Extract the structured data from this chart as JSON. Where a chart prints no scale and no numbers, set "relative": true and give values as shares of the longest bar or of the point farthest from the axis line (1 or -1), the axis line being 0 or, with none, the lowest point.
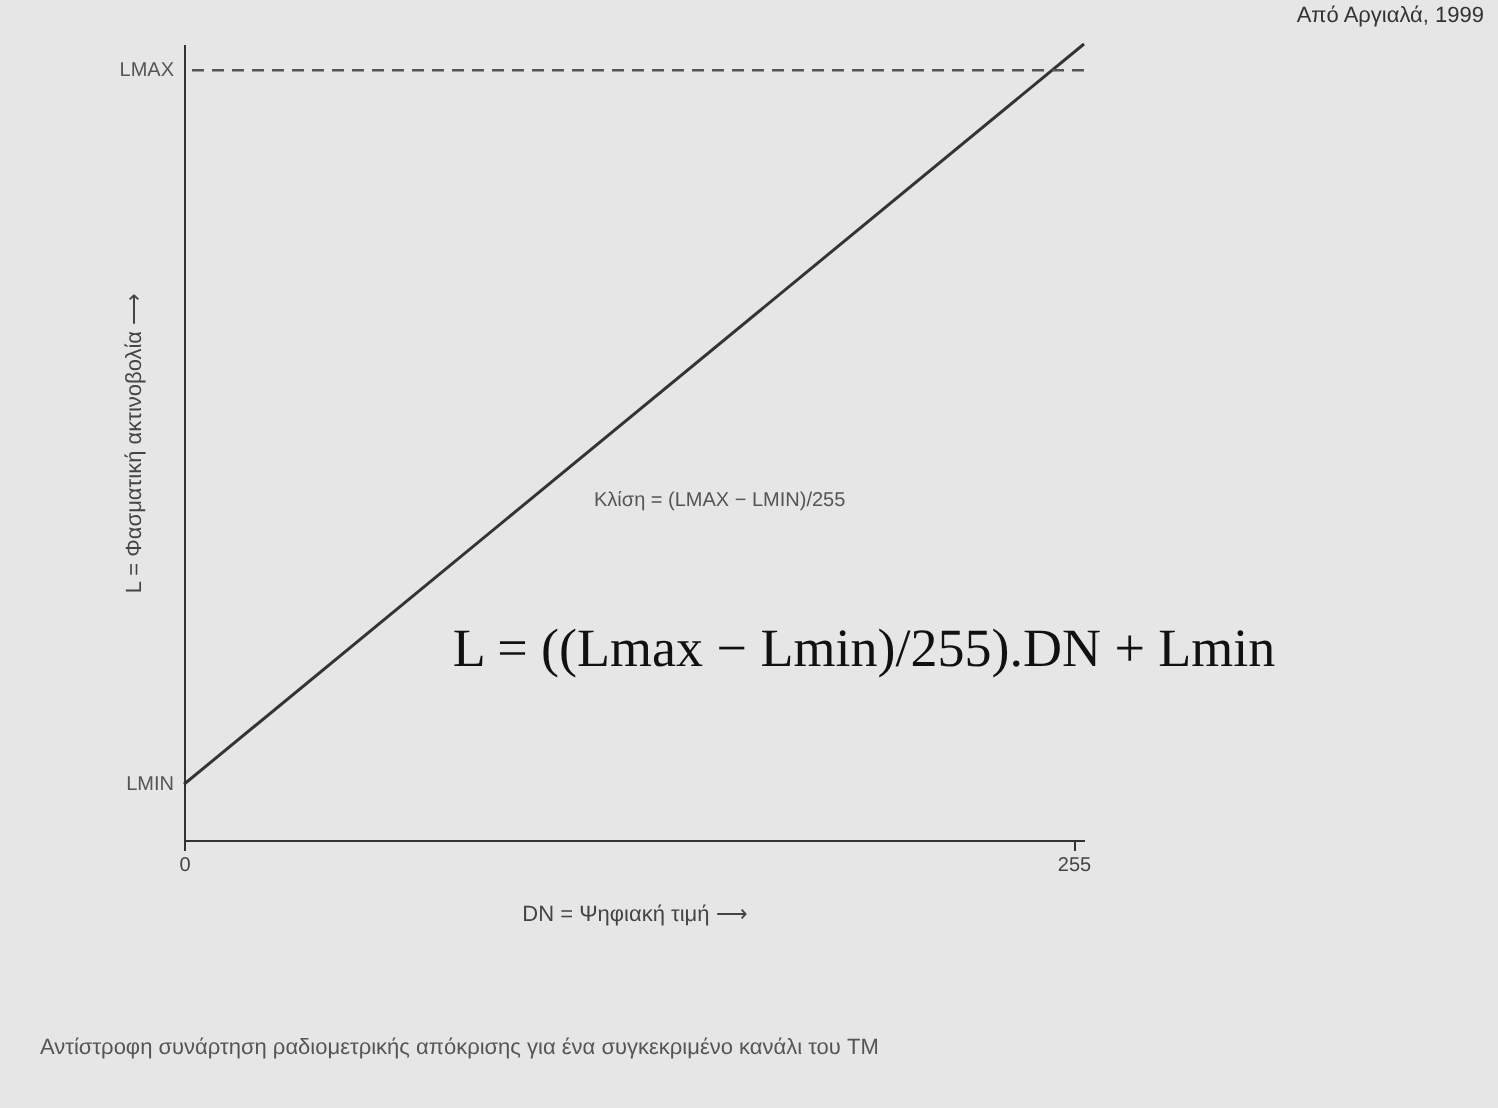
{
  "chart_data": {
    "type": "line",
    "relative": true,
    "xlabel": "DN = Ψηφιακή τιμή ⟶",
    "ylabel": "L = Φασματική ακτινοβολία ⟶",
    "xlim": [
      0,
      258
    ],
    "xticks": [
      0,
      255
    ],
    "series": [
      {
        "color": "#333333",
        "x": [
          0,
          258
        ],
        "values": [
          0.07,
          1
        ]
      }
    ],
    "ref_lines": [
      {
        "axis": "y",
        "value": 0.967,
        "label": "LMAX",
        "color": "#555555",
        "line_style": "dashed"
      }
    ],
    "annotations": [
      "Από Αργιαλά, 1999",
      "LMIN",
      "Κλίση = (LMAX − LMIN)/255",
      "L = ((Lmax − Lmin)/255).DN + Lmin",
      "Αντίστροφη συνάρτηση ραδιομετρικής απόκρισης για ένα συγκεκριμένο κανάλι του TM"
    ]
  }
}
